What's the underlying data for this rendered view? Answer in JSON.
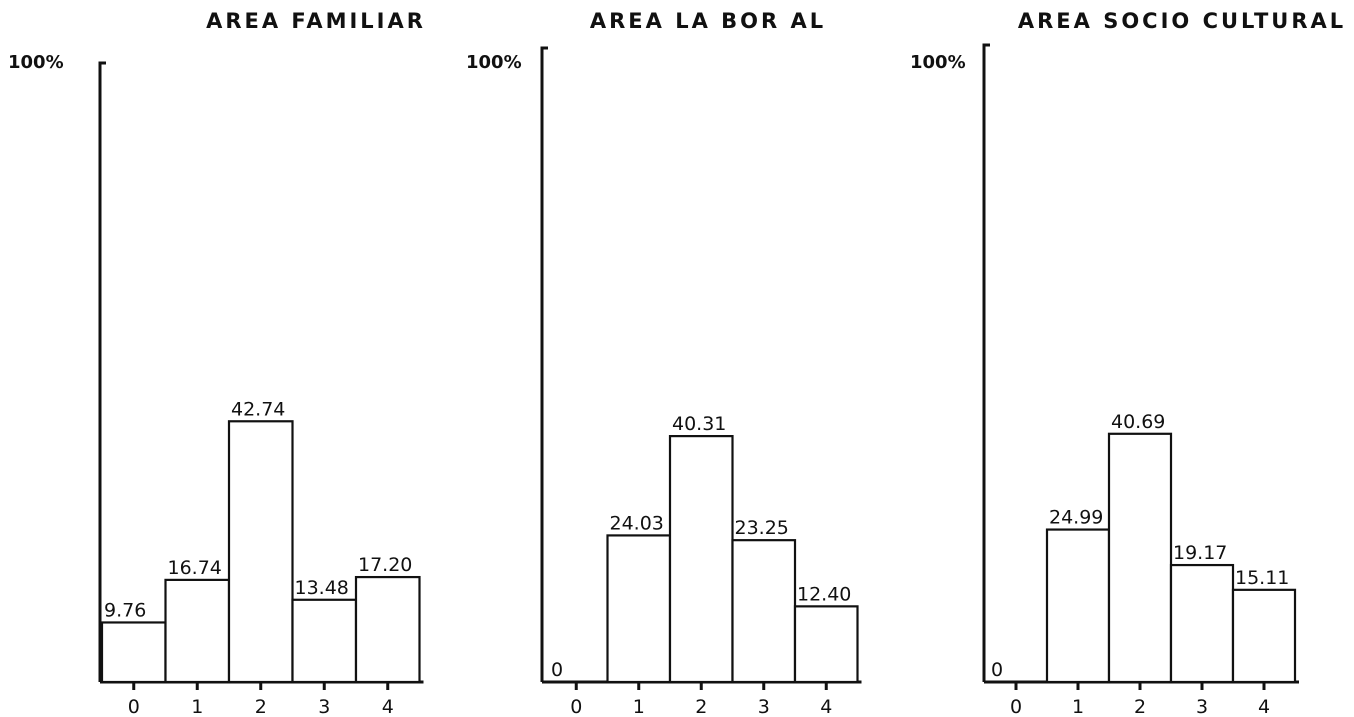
{
  "chart_data": [
    {
      "type": "bar",
      "title": "AREA FAMILIAR",
      "y_top_label": "100%",
      "ylim": [
        0,
        100
      ],
      "categories": [
        "0",
        "1",
        "2",
        "3",
        "4"
      ],
      "values": [
        9.76,
        16.74,
        42.74,
        13.48,
        17.2
      ],
      "data_labels": [
        "9.76",
        "16.74",
        "42.74",
        "13.48",
        "17.20"
      ]
    },
    {
      "type": "bar",
      "title": "AREA LA BOR AL",
      "y_top_label": "100%",
      "ylim": [
        0,
        100
      ],
      "categories": [
        "0",
        "1",
        "2",
        "3",
        "4"
      ],
      "values": [
        0,
        24.03,
        40.31,
        23.25,
        12.4
      ],
      "data_labels": [
        "0",
        "24.03",
        "40.31",
        "23.25",
        "12.40"
      ]
    },
    {
      "type": "bar",
      "title": "AREA SOCIO CULTURAL",
      "y_top_label": "100%",
      "ylim": [
        0,
        100
      ],
      "categories": [
        "0",
        "1",
        "2",
        "3",
        "4"
      ],
      "values": [
        0,
        24.99,
        40.69,
        19.17,
        15.11
      ],
      "data_labels": [
        "0",
        "24.99",
        "40.69",
        "19.17",
        "15.11"
      ]
    }
  ]
}
